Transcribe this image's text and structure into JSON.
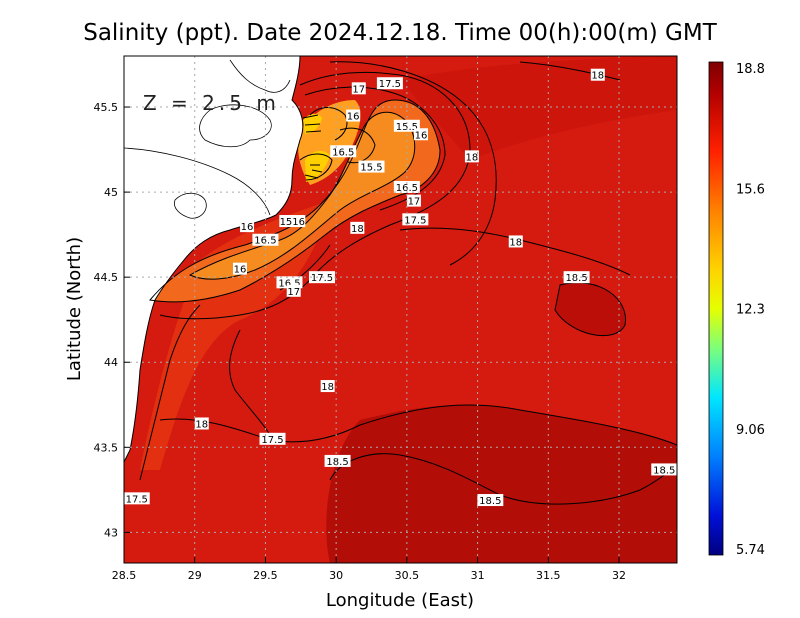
{
  "title": "Salinity (ppt). Date 2024.12.18. Time 00(h):00(m) GMT",
  "depth_label": "Z = 2.5 m",
  "x_axis": {
    "title": "Longitude (East)",
    "ticks": [
      "28.5",
      "29",
      "29.5",
      "30",
      "30.5",
      "31",
      "31.5",
      "32"
    ]
  },
  "y_axis": {
    "title": "Latitude (North)",
    "ticks": [
      "45.5",
      "45",
      "44.5",
      "44",
      "43.5",
      "43"
    ]
  },
  "colorbar": {
    "labels": [
      "18.8",
      "15.6",
      "12.3",
      "9.06",
      "5.74"
    ],
    "colors": [
      "#7f0000",
      "#d20000",
      "#ff4a00",
      "#ffb300",
      "#e6ff00",
      "#50ff50",
      "#00e6ff",
      "#0080ff",
      "#0000c8",
      "#00007f"
    ]
  },
  "contour_labels": [
    {
      "text": "17.5",
      "lon": 30.38,
      "lat": 45.64
    },
    {
      "text": "17",
      "lon": 30.16,
      "lat": 45.61
    },
    {
      "text": "18",
      "lon": 31.85,
      "lat": 45.69
    },
    {
      "text": "16",
      "lon": 30.12,
      "lat": 45.45
    },
    {
      "text": "15.5",
      "lon": 30.5,
      "lat": 45.39
    },
    {
      "text": "16",
      "lon": 30.6,
      "lat": 45.34
    },
    {
      "text": "16.5",
      "lon": 30.05,
      "lat": 45.24
    },
    {
      "text": "15.5",
      "lon": 30.25,
      "lat": 45.15
    },
    {
      "text": "18",
      "lon": 30.96,
      "lat": 45.21
    },
    {
      "text": "16.5",
      "lon": 30.5,
      "lat": 45.03
    },
    {
      "text": "17",
      "lon": 30.55,
      "lat": 44.95
    },
    {
      "text": "17.5",
      "lon": 30.56,
      "lat": 44.84
    },
    {
      "text": "16",
      "lon": 29.37,
      "lat": 44.8
    },
    {
      "text": "1516",
      "lon": 29.69,
      "lat": 44.83
    },
    {
      "text": "18",
      "lon": 30.15,
      "lat": 44.79
    },
    {
      "text": "16.5",
      "lon": 29.5,
      "lat": 44.72
    },
    {
      "text": "18",
      "lon": 31.27,
      "lat": 44.71
    },
    {
      "text": "16",
      "lon": 29.32,
      "lat": 44.55
    },
    {
      "text": "16.5",
      "lon": 29.67,
      "lat": 44.47
    },
    {
      "text": "17.5",
      "lon": 29.9,
      "lat": 44.5
    },
    {
      "text": "17",
      "lon": 29.7,
      "lat": 44.42
    },
    {
      "text": "18.5",
      "lon": 31.7,
      "lat": 44.5
    },
    {
      "text": "18",
      "lon": 29.94,
      "lat": 43.86
    },
    {
      "text": "18",
      "lon": 29.05,
      "lat": 43.64
    },
    {
      "text": "17.5",
      "lon": 29.55,
      "lat": 43.55
    },
    {
      "text": "18.5",
      "lon": 30.01,
      "lat": 43.42
    },
    {
      "text": "18.5",
      "lon": 32.32,
      "lat": 43.37
    },
    {
      "text": "17.5",
      "lon": 28.59,
      "lat": 43.2
    },
    {
      "text": "18.5",
      "lon": 31.09,
      "lat": 43.19
    }
  ]
}
